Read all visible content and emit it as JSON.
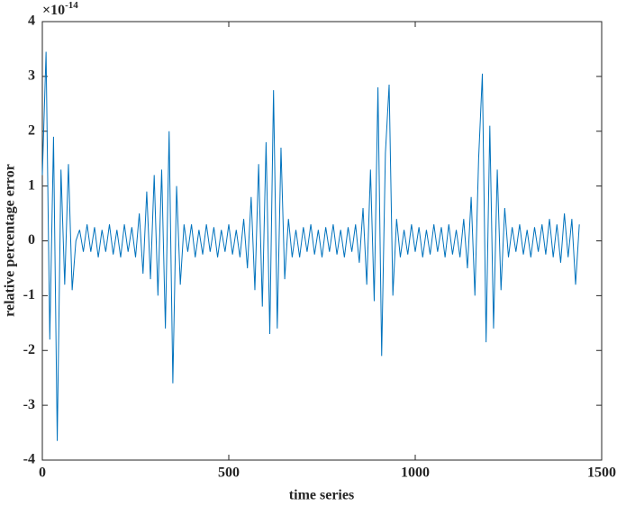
{
  "chart_data": {
    "type": "line",
    "x_label": "time series",
    "y_label": "relative percentage error",
    "y_multiplier": {
      "base": "×10",
      "exponent": "-14"
    },
    "color": "#0072bd",
    "xlim": [
      0,
      1500
    ],
    "xticks": [
      0,
      500,
      1000,
      1500
    ],
    "ylim": [
      -4,
      4
    ],
    "yticks": [
      -4,
      -3,
      -2,
      -1,
      0,
      1,
      2,
      3,
      4
    ],
    "grid": false,
    "x": [
      0,
      10,
      20,
      30,
      40,
      50,
      60,
      70,
      80,
      90,
      100,
      110,
      120,
      130,
      140,
      150,
      160,
      170,
      180,
      190,
      200,
      210,
      220,
      230,
      240,
      250,
      260,
      270,
      280,
      290,
      300,
      310,
      320,
      330,
      340,
      350,
      360,
      370,
      380,
      390,
      400,
      410,
      420,
      430,
      440,
      450,
      460,
      470,
      480,
      490,
      500,
      510,
      520,
      530,
      540,
      550,
      560,
      570,
      580,
      590,
      600,
      610,
      620,
      630,
      640,
      650,
      660,
      670,
      680,
      690,
      700,
      710,
      720,
      730,
      740,
      750,
      760,
      770,
      780,
      790,
      800,
      810,
      820,
      830,
      840,
      850,
      860,
      870,
      880,
      890,
      900,
      910,
      920,
      930,
      940,
      950,
      960,
      970,
      980,
      990,
      1000,
      1010,
      1020,
      1030,
      1040,
      1050,
      1060,
      1070,
      1080,
      1090,
      1100,
      1110,
      1120,
      1130,
      1140,
      1150,
      1160,
      1170,
      1180,
      1190,
      1200,
      1210,
      1220,
      1230,
      1240,
      1250,
      1260,
      1270,
      1280,
      1290,
      1300,
      1310,
      1320,
      1330,
      1340,
      1350,
      1360,
      1370,
      1380,
      1390,
      1400,
      1410,
      1420,
      1430,
      1440
    ],
    "values": [
      1.2,
      3.45,
      -1.8,
      1.9,
      -3.65,
      1.3,
      -0.8,
      1.4,
      -0.9,
      0,
      0.2,
      -0.2,
      0.3,
      -0.2,
      0.25,
      -0.3,
      0.2,
      -0.2,
      0.3,
      -0.25,
      0.2,
      -0.3,
      0.3,
      -0.2,
      0.25,
      -0.3,
      0.5,
      -0.6,
      0.9,
      -0.7,
      1.2,
      -1.0,
      1.3,
      -1.6,
      2.0,
      -2.6,
      1.0,
      -0.8,
      0.3,
      -0.2,
      0.3,
      -0.3,
      0.2,
      -0.25,
      0.3,
      -0.2,
      0.25,
      -0.3,
      0.2,
      -0.2,
      0.3,
      -0.25,
      0.2,
      -0.3,
      0.4,
      -0.5,
      0.8,
      -0.9,
      1.4,
      -1.2,
      1.8,
      -1.7,
      2.75,
      -1.6,
      1.7,
      -0.7,
      0.4,
      -0.3,
      0.2,
      -0.3,
      0.25,
      -0.2,
      0.3,
      -0.25,
      0.2,
      -0.3,
      0.25,
      -0.2,
      0.3,
      -0.25,
      0.2,
      -0.3,
      0.25,
      -0.2,
      0.3,
      -0.4,
      0.6,
      -0.8,
      1.3,
      -1.1,
      2.8,
      -2.1,
      1.6,
      2.85,
      -1.0,
      0.4,
      -0.3,
      0.2,
      -0.25,
      0.3,
      -0.2,
      0.25,
      -0.3,
      0.2,
      -0.25,
      0.3,
      -0.2,
      0.25,
      -0.3,
      0.3,
      -0.25,
      0.2,
      -0.3,
      0.4,
      -0.5,
      0.8,
      -1.0,
      1.5,
      3.05,
      -1.85,
      2.1,
      -1.6,
      1.3,
      -0.9,
      0.6,
      -0.3,
      0.25,
      -0.2,
      0.3,
      -0.25,
      0.2,
      -0.3,
      0.25,
      -0.2,
      0.3,
      -0.25,
      0.4,
      -0.3,
      0.3,
      -0.4,
      0.5,
      -0.3,
      0.4,
      -0.8,
      0.3
    ]
  }
}
